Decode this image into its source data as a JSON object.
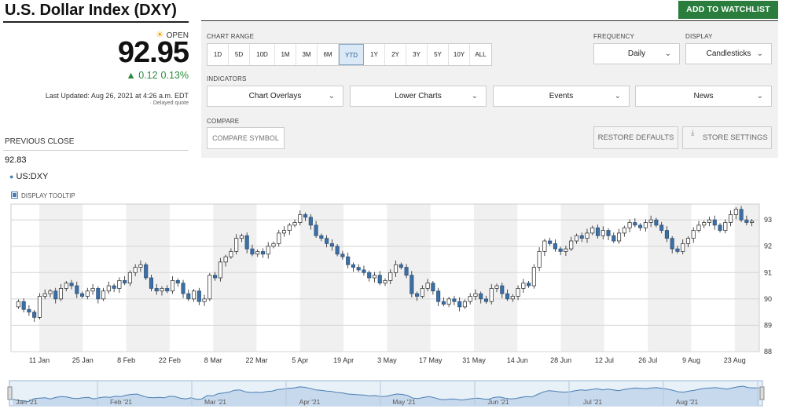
{
  "header": {
    "title": "U.S. Dollar Index (DXY)",
    "watchlist_label": "ADD TO WATCHLIST"
  },
  "quote": {
    "status": "OPEN",
    "price": "92.95",
    "change": "0.12",
    "change_pct": "0.13%",
    "last_updated": "Last Updated: Aug 26, 2021 at 4:26 a.m. EDT",
    "delayed": "· Delayed quote",
    "previous_close_label": "PREVIOUS CLOSE",
    "previous_close": "92.83"
  },
  "controls": {
    "chart_range_label": "CHART RANGE",
    "ranges": [
      "1D",
      "5D",
      "10D",
      "1M",
      "3M",
      "6M",
      "YTD",
      "1Y",
      "2Y",
      "3Y",
      "5Y",
      "10Y",
      "ALL"
    ],
    "active_range": "YTD",
    "frequency_label": "FREQUENCY",
    "frequency": "Daily",
    "display_label": "DISPLAY",
    "display": "Candlesticks",
    "indicators_label": "INDICATORS",
    "indicators": [
      "Chart Overlays",
      "Lower Charts",
      "Events",
      "News"
    ],
    "compare_label": "COMPARE",
    "compare_placeholder": "COMPARE SYMBOL",
    "restore_label": "RESTORE DEFAULTS",
    "store_label": "STORE SETTINGS"
  },
  "chart": {
    "series_id": "US:DXY",
    "tooltip_label": "DISPLAY TOOLTIP"
  },
  "chart_data": {
    "type": "candlestick",
    "ylim": [
      88,
      93.6
    ],
    "y_ticks": [
      88,
      89,
      90,
      91,
      92,
      93
    ],
    "x_ticks": [
      "11 Jan",
      "25 Jan",
      "8 Feb",
      "22 Feb",
      "8 Mar",
      "22 Mar",
      "5 Apr",
      "19 Apr",
      "3 May",
      "17 May",
      "31 May",
      "14 Jun",
      "28 Jun",
      "12 Jul",
      "26 Jul",
      "9 Aug",
      "23 Aug"
    ],
    "navigator_labels": [
      "Jan '21",
      "Feb '21",
      "Mar '21",
      "Apr '21",
      "May '21",
      "Jun '21",
      "Jul '21",
      "Aug '21"
    ],
    "closes": [
      89.9,
      89.6,
      89.5,
      89.3,
      90.1,
      90.2,
      90.3,
      90.0,
      90.4,
      90.6,
      90.5,
      90.2,
      90.1,
      90.3,
      90.4,
      90.0,
      90.3,
      90.5,
      90.4,
      90.7,
      90.6,
      91.0,
      91.2,
      91.3,
      90.8,
      90.4,
      90.3,
      90.4,
      90.3,
      90.7,
      90.6,
      90.2,
      90.0,
      90.3,
      89.9,
      90.0,
      90.9,
      90.8,
      91.4,
      91.6,
      91.8,
      92.3,
      92.4,
      91.9,
      91.7,
      91.8,
      91.7,
      92.0,
      92.1,
      92.5,
      92.6,
      92.8,
      92.9,
      93.2,
      93.1,
      92.8,
      92.4,
      92.3,
      92.1,
      92.0,
      91.7,
      91.6,
      91.3,
      91.2,
      91.1,
      91.0,
      90.8,
      90.9,
      90.6,
      90.7,
      91.0,
      91.3,
      91.2,
      90.9,
      90.2,
      90.1,
      90.4,
      90.6,
      90.3,
      89.9,
      89.8,
      90.0,
      89.9,
      89.7,
      89.9,
      90.1,
      90.2,
      90.0,
      89.9,
      90.4,
      90.5,
      90.2,
      90.0,
      90.1,
      90.4,
      90.6,
      90.5,
      91.2,
      91.8,
      92.2,
      92.1,
      91.9,
      91.8,
      91.9,
      92.2,
      92.4,
      92.3,
      92.5,
      92.7,
      92.4,
      92.6,
      92.4,
      92.2,
      92.5,
      92.7,
      92.9,
      92.8,
      92.7,
      92.9,
      93.0,
      92.8,
      92.6,
      92.3,
      91.9,
      91.8,
      92.1,
      92.3,
      92.6,
      92.8,
      92.9,
      93.0,
      92.8,
      92.6,
      92.9,
      93.2,
      93.4,
      93.0,
      92.9,
      92.95
    ]
  }
}
